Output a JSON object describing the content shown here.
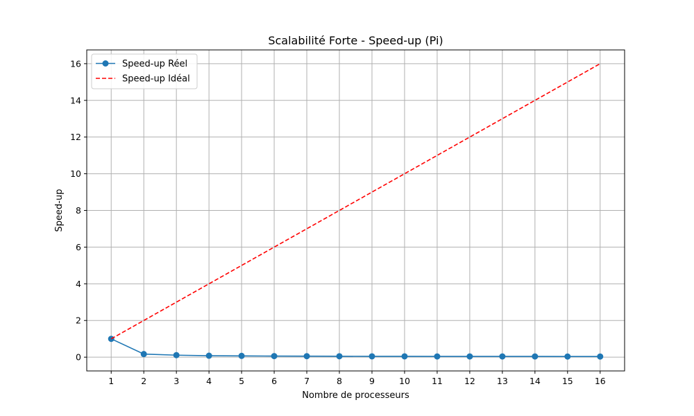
{
  "chart_data": {
    "type": "line",
    "title": "Scalabilité Forte - Speed-up (Pi)",
    "xlabel": "Nombre de processeurs",
    "ylabel": "Speed-up",
    "xlim": [
      0.25,
      16.75
    ],
    "ylim": [
      -0.75,
      16.75
    ],
    "x": [
      1,
      2,
      3,
      4,
      5,
      6,
      7,
      8,
      9,
      10,
      11,
      12,
      13,
      14,
      15,
      16
    ],
    "xticks": [
      1,
      2,
      3,
      4,
      5,
      6,
      7,
      8,
      9,
      10,
      11,
      12,
      13,
      14,
      15,
      16
    ],
    "yticks": [
      0,
      2,
      4,
      6,
      8,
      10,
      12,
      14,
      16
    ],
    "grid": true,
    "legend_position": "top-left",
    "series": [
      {
        "name": "Speed-up Réel",
        "color": "#1f77b4",
        "style": "solid",
        "marker": "circle",
        "values": [
          1.0,
          0.17,
          0.11,
          0.08,
          0.07,
          0.06,
          0.055,
          0.05,
          0.045,
          0.045,
          0.04,
          0.04,
          0.04,
          0.04,
          0.035,
          0.035
        ]
      },
      {
        "name": "Speed-up Idéal",
        "color": "#ff0000",
        "style": "dashed",
        "marker": "none",
        "values": [
          1,
          2,
          3,
          4,
          5,
          6,
          7,
          8,
          9,
          10,
          11,
          12,
          13,
          14,
          15,
          16
        ]
      }
    ]
  }
}
